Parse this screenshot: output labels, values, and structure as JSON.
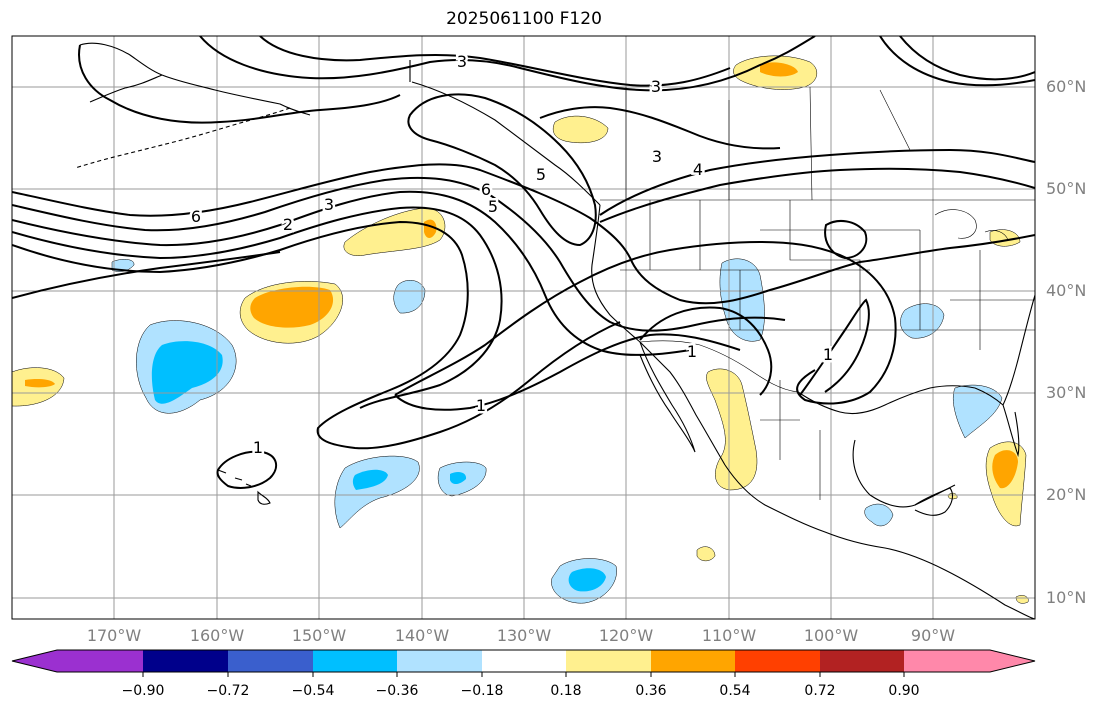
{
  "title": "2025061100 F120",
  "map": {
    "projection": "PlateCarree",
    "lon_range": [
      -180,
      -80
    ],
    "lat_range": [
      7,
      65
    ],
    "gridline_color": "#9a9a9a",
    "coastline_color": "#000000",
    "contour_color": "#000000"
  },
  "lat_labels": [
    "60°N",
    "50°N",
    "40°N",
    "30°N",
    "20°N",
    "10°N"
  ],
  "lon_labels": [
    "170°W",
    "160°W",
    "150°W",
    "140°W",
    "130°W",
    "120°W",
    "110°W",
    "100°W",
    "90°W"
  ],
  "contour_labels": [
    "3",
    "3",
    "3",
    "4",
    "5",
    "6",
    "6",
    "5",
    "3",
    "2",
    "1",
    "1",
    "1",
    "1"
  ],
  "colorbar": {
    "ticks": [
      "−0.90",
      "−0.72",
      "−0.54",
      "−0.36",
      "−0.18",
      "0.18",
      "0.36",
      "0.54",
      "0.72",
      "0.90"
    ],
    "colors": [
      "#9b30d0",
      "#00008b",
      "#3a5fcd",
      "#00bfff",
      "#b0e2ff",
      "#ffffff",
      "#fff08f",
      "#ffa500",
      "#ff4000",
      "#b22222",
      "#ff88aa"
    ],
    "extend": "both"
  },
  "shading_colors": {
    "neg_light": "#b0e2ff",
    "neg_strong": "#00bfff",
    "pos_light": "#fff08f",
    "pos_strong": "#ffa500"
  }
}
